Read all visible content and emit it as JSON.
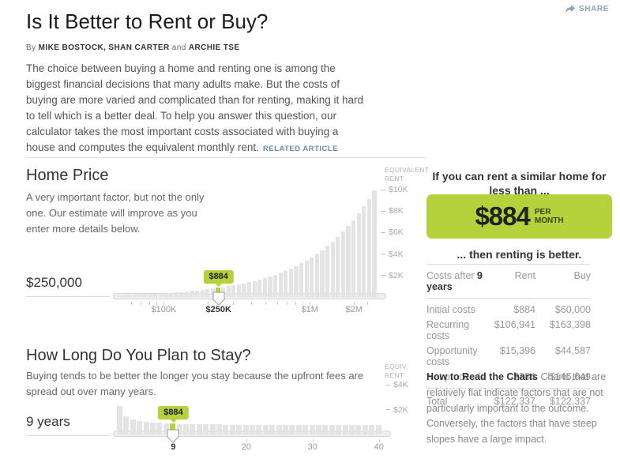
{
  "colors": {
    "accent_green": "#b3d23c",
    "bar_gray": "#e4e4e4"
  },
  "header": {
    "title": "Is It Better to Rent or Buy?",
    "byline_prefix": "By",
    "authors_a": "MIKE BOSTOCK, SHAN CARTER",
    "byline_conj": "and",
    "authors_b": "ARCHIE TSE",
    "share_label": "SHARE",
    "intro": "The choice between buying a home and renting one is among the biggest financial decisions that many adults make. But the costs of buying are more varied and complicated than for renting, making it hard to tell which is a better deal. To help you answer this question, our calculator takes the most important costs associated with buying a house and computes the equivalent monthly rent.",
    "related_link": "RELATED ARTICLE"
  },
  "home_price": {
    "heading": "Home Price",
    "description": "A very important factor, but not the only one. Our estimate will improve as you enter more details below.",
    "input_value": "$250,000",
    "axis_title_line1": "EQUIVALENT",
    "axis_title_line2": "RENT",
    "tooltip": "$884"
  },
  "stay": {
    "heading": "How Long Do You Plan to Stay?",
    "description": "Buying tends to be better the longer you stay because the upfront fees are spread out over many years.",
    "input_value": "9 years",
    "axis_title_line1": "EQUIV.",
    "axis_title_line2": "RENT",
    "tooltip": "$884"
  },
  "verdict": {
    "intro_line": "If you can rent a similar home for less than ...",
    "amount": "$884",
    "per_line1": "PER",
    "per_line2": "MONTH",
    "outro_line": "... then renting is better."
  },
  "costs_table": {
    "header_label_prefix": "Costs after ",
    "header_label_value": "9 years",
    "col_rent": "Rent",
    "col_buy": "Buy",
    "rows": [
      {
        "label": "Initial costs",
        "rent": "$884",
        "buy": "$60,000"
      },
      {
        "label": "Recurring costs",
        "rent": "$106,941",
        "buy": "$163,398"
      },
      {
        "label": "Opportunity costs",
        "rent": "$15,396",
        "buy": "$44,587"
      },
      {
        "label": "Net proceeds",
        "rent": "-$884",
        "buy": "-$145,649"
      }
    ],
    "total": {
      "label": "Total",
      "rent": "$122,337",
      "buy": "$122,337"
    }
  },
  "how_to_read": {
    "lead": "How to Read the Charts",
    "body": " Charts that are relatively flat indicate factors that are not particularly important to the outcome. Conversely, the factors that have steep slopes have a large impact."
  },
  "chart_data": [
    {
      "name": "home-price-chart",
      "type": "bar",
      "title": "Home Price",
      "xlabel": "Home price (log scale, $)",
      "ylabel": "Equivalent rent ($ per month)",
      "x_domain": [
        50000,
        2800000
      ],
      "ylim": [
        0,
        10300
      ],
      "grid": "right-dashes",
      "selected_index": 19,
      "selected_x": 250000,
      "selected_value": 884,
      "values": [
        178,
        193,
        210,
        228,
        247,
        268,
        291,
        316,
        343,
        372,
        404,
        439,
        476,
        517,
        561,
        609,
        661,
        718,
        779,
        884,
        918,
        997,
        1082,
        1175,
        1275,
        1384,
        1503,
        1632,
        1771,
        1923,
        2088,
        2266,
        2460,
        2671,
        2900,
        3148,
        3417,
        3710,
        4028,
        4373,
        4747,
        5154,
        5595,
        6074,
        6594,
        7159,
        7772,
        8437,
        9159,
        9943
      ],
      "yticks": [
        {
          "label": "$10K",
          "value": 10000
        },
        {
          "label": "$8K",
          "value": 8000
        },
        {
          "label": "$6K",
          "value": 6000
        },
        {
          "label": "$4K",
          "value": 4000
        },
        {
          "label": "$2K",
          "value": 2000
        }
      ],
      "xticks": [
        {
          "label": "$100K",
          "pos": 18,
          "bold": false
        },
        {
          "label": "$250K",
          "pos": 39,
          "bold": true
        },
        {
          "label": "$1M",
          "pos": 74,
          "bold": false
        },
        {
          "label": "$2M",
          "pos": 91,
          "bold": false
        }
      ],
      "minor_ticks": [
        5.4,
        9.2,
        12.4,
        15.3,
        18,
        34.7,
        44.6,
        51.6,
        57,
        61.4,
        65.2,
        68.4,
        71.3,
        74,
        90.8,
        96.2
      ]
    },
    {
      "name": "stay-chart",
      "type": "bar",
      "title": "How Long Do You Plan to Stay?",
      "xlabel": "Years of stay (1–40)",
      "ylabel": "Equivalent rent ($ per month)",
      "x_domain": [
        1,
        40
      ],
      "ylim": [
        0,
        4600
      ],
      "grid": "right-dashes",
      "selected_index": 8,
      "selected_x": 9,
      "selected_value": 884,
      "values": [
        2300,
        1500,
        1233,
        1100,
        1020,
        967,
        929,
        900,
        884,
        860,
        845,
        833,
        823,
        814,
        807,
        800,
        794,
        789,
        784,
        780,
        776,
        773,
        770,
        767,
        764,
        762,
        759,
        757,
        755,
        753,
        752,
        750,
        748,
        747,
        746,
        744,
        743,
        742,
        741,
        740
      ],
      "yticks": [
        {
          "label": "$4K",
          "value": 4000
        },
        {
          "label": "$2K",
          "value": 2000
        }
      ],
      "xticks": [
        {
          "label": "9",
          "pos": 21.25,
          "bold": true
        },
        {
          "label": "20",
          "pos": 48.75,
          "bold": false
        },
        {
          "label": "30",
          "pos": 73.75,
          "bold": false
        },
        {
          "label": "40",
          "pos": 98.75,
          "bold": false
        }
      ],
      "minor_ticks": [
        48.75,
        73.75,
        98.75
      ]
    }
  ]
}
